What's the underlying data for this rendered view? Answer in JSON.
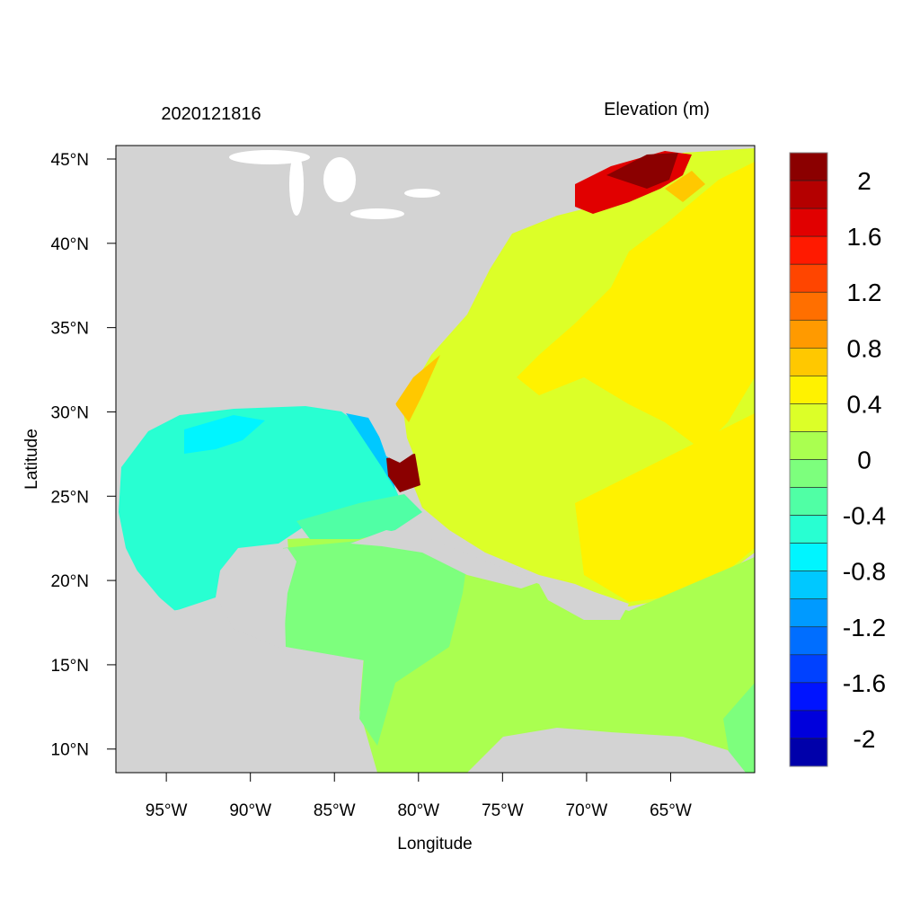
{
  "title_left": "2020121816",
  "title_right": "Elevation (m)",
  "xlabel": "Longitude",
  "ylabel": "Latitude",
  "x_ticks": [
    {
      "lon": -95,
      "label": "95°W"
    },
    {
      "lon": -90,
      "label": "90°W"
    },
    {
      "lon": -85,
      "label": "85°W"
    },
    {
      "lon": -80,
      "label": "80°W"
    },
    {
      "lon": -75,
      "label": "75°W"
    },
    {
      "lon": -70,
      "label": "70°W"
    },
    {
      "lon": -65,
      "label": "65°W"
    }
  ],
  "y_ticks": [
    {
      "lat": 45,
      "label": "45°N"
    },
    {
      "lat": 40,
      "label": "40°N"
    },
    {
      "lat": 35,
      "label": "35°N"
    },
    {
      "lat": 30,
      "label": "30°N"
    },
    {
      "lat": 25,
      "label": "25°N"
    },
    {
      "lat": 20,
      "label": "20°N"
    },
    {
      "lat": 15,
      "label": "15°N"
    },
    {
      "lat": 10,
      "label": "10°N"
    }
  ],
  "extent": {
    "lon": [
      -98,
      -60
    ],
    "lat": [
      8.6,
      45.8
    ]
  },
  "land_color": "#D3D3D3",
  "colorbar": {
    "range": [
      -2.2,
      2.2
    ],
    "step": 0.2,
    "colors": [
      "#8B0000",
      "#B40000",
      "#E10000",
      "#FF1A00",
      "#FF4500",
      "#FF6F00",
      "#FF9A00",
      "#FFC800",
      "#FFF200",
      "#DCFF28",
      "#AAFF50",
      "#7DFF7D",
      "#50FFA5",
      "#28FFD2",
      "#00F5FF",
      "#00C8FF",
      "#009AFF",
      "#006EFF",
      "#0041FF",
      "#0014FF",
      "#0000DC",
      "#0000AA"
    ],
    "labels": [
      {
        "value": 2,
        "label": "2"
      },
      {
        "value": 1.6,
        "label": "1.6"
      },
      {
        "value": 1.2,
        "label": "1.2"
      },
      {
        "value": 0.8,
        "label": "0.8"
      },
      {
        "value": 0.4,
        "label": "0.4"
      },
      {
        "value": 0,
        "label": "0"
      },
      {
        "value": -0.4,
        "label": "-0.4"
      },
      {
        "value": -0.8,
        "label": "-0.8"
      },
      {
        "value": -1.2,
        "label": "-1.2"
      },
      {
        "value": -1.6,
        "label": "-1.6"
      },
      {
        "value": -2,
        "label": "-2"
      }
    ]
  }
}
